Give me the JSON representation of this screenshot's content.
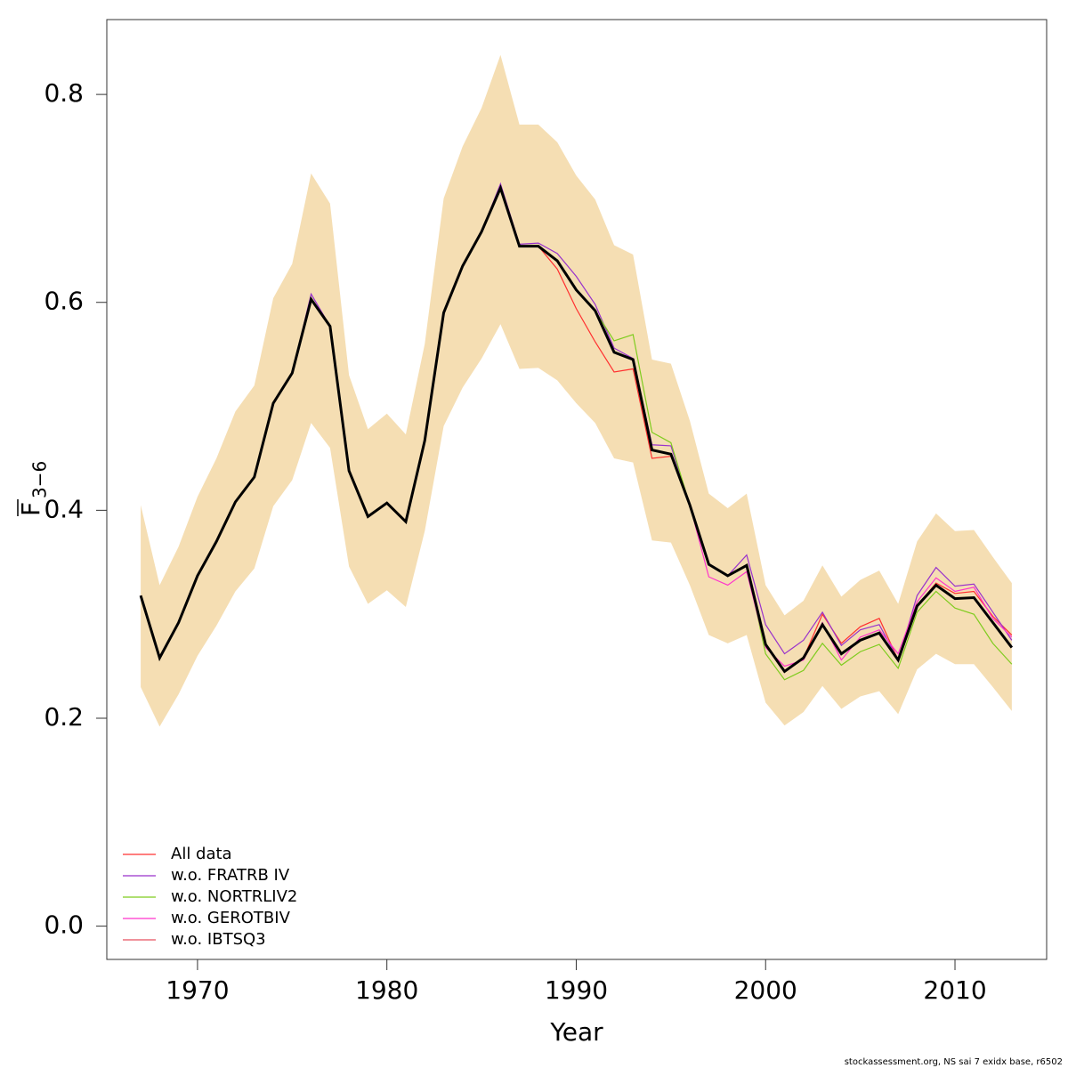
{
  "chart_data": {
    "type": "line",
    "xlabel": "Year",
    "ylabel": "F",
    "ylabel_sub": "3−6",
    "footer": "stockassessment.org, NS sai 7 exidx base, r6502",
    "x": [
      1967,
      1968,
      1969,
      1970,
      1971,
      1972,
      1973,
      1974,
      1975,
      1976,
      1977,
      1978,
      1979,
      1980,
      1981,
      1982,
      1983,
      1984,
      1985,
      1986,
      1987,
      1988,
      1989,
      1990,
      1991,
      1992,
      1993,
      1994,
      1995,
      1996,
      1997,
      1998,
      1999,
      2000,
      2001,
      2002,
      2003,
      2004,
      2005,
      2006,
      2007,
      2008,
      2009,
      2010,
      2011,
      2012,
      2013
    ],
    "band": {
      "color": "#f5deb3",
      "lower": [
        0.23,
        0.192,
        0.223,
        0.26,
        0.289,
        0.322,
        0.344,
        0.404,
        0.429,
        0.484,
        0.46,
        0.346,
        0.31,
        0.323,
        0.307,
        0.38,
        0.481,
        0.518,
        0.546,
        0.579,
        0.536,
        0.537,
        0.525,
        0.503,
        0.484,
        0.45,
        0.446,
        0.371,
        0.369,
        0.328,
        0.28,
        0.272,
        0.28,
        0.215,
        0.193,
        0.206,
        0.231,
        0.209,
        0.221,
        0.226,
        0.204,
        0.247,
        0.262,
        0.252,
        0.252,
        0.23,
        0.207
      ],
      "upper": [
        0.405,
        0.328,
        0.365,
        0.413,
        0.45,
        0.495,
        0.52,
        0.604,
        0.637,
        0.724,
        0.695,
        0.53,
        0.478,
        0.493,
        0.473,
        0.56,
        0.7,
        0.75,
        0.787,
        0.838,
        0.771,
        0.771,
        0.754,
        0.722,
        0.699,
        0.655,
        0.646,
        0.545,
        0.541,
        0.486,
        0.416,
        0.402,
        0.416,
        0.328,
        0.299,
        0.313,
        0.347,
        0.317,
        0.333,
        0.342,
        0.31,
        0.37,
        0.397,
        0.38,
        0.381,
        0.355,
        0.33
      ]
    },
    "estimate": {
      "color": "#000000",
      "values": [
        0.318,
        0.258,
        0.292,
        0.337,
        0.37,
        0.408,
        0.432,
        0.503,
        0.532,
        0.603,
        0.577,
        0.438,
        0.394,
        0.407,
        0.389,
        0.467,
        0.59,
        0.635,
        0.668,
        0.71,
        0.654,
        0.654,
        0.64,
        0.612,
        0.592,
        0.552,
        0.545,
        0.458,
        0.454,
        0.405,
        0.348,
        0.337,
        0.347,
        0.271,
        0.245,
        0.258,
        0.29,
        0.262,
        0.275,
        0.282,
        0.256,
        0.308,
        0.328,
        0.315,
        0.316,
        0.292,
        0.268
      ]
    },
    "series": [
      {
        "name": "All data",
        "color": "#ff3030",
        "values": [
          0.318,
          0.258,
          0.292,
          0.337,
          0.37,
          0.408,
          0.432,
          0.503,
          0.532,
          0.603,
          0.577,
          0.438,
          0.394,
          0.407,
          0.389,
          0.467,
          0.59,
          0.635,
          0.668,
          0.71,
          0.654,
          0.654,
          0.632,
          0.594,
          0.562,
          0.533,
          0.536,
          0.45,
          0.452,
          0.405,
          0.348,
          0.337,
          0.347,
          0.271,
          0.245,
          0.258,
          0.3,
          0.272,
          0.288,
          0.296,
          0.256,
          0.308,
          0.33,
          0.32,
          0.322,
          0.298,
          0.28
        ]
      },
      {
        "name": "w.o. FRATRB IV",
        "color": "#9932cc",
        "values": [
          0.318,
          0.258,
          0.292,
          0.337,
          0.37,
          0.408,
          0.432,
          0.503,
          0.532,
          0.608,
          0.577,
          0.438,
          0.394,
          0.407,
          0.389,
          0.467,
          0.59,
          0.635,
          0.668,
          0.714,
          0.656,
          0.657,
          0.647,
          0.625,
          0.598,
          0.556,
          0.546,
          0.463,
          0.462,
          0.405,
          0.348,
          0.337,
          0.357,
          0.29,
          0.262,
          0.275,
          0.302,
          0.27,
          0.285,
          0.29,
          0.256,
          0.318,
          0.345,
          0.327,
          0.329,
          0.302,
          0.275
        ]
      },
      {
        "name": "w.o. NORTRLIV2",
        "color": "#7fcc1f",
        "values": [
          0.318,
          0.258,
          0.292,
          0.337,
          0.37,
          0.408,
          0.432,
          0.503,
          0.532,
          0.603,
          0.577,
          0.438,
          0.394,
          0.407,
          0.389,
          0.467,
          0.59,
          0.635,
          0.668,
          0.71,
          0.654,
          0.654,
          0.64,
          0.612,
          0.592,
          0.563,
          0.569,
          0.475,
          0.465,
          0.405,
          0.348,
          0.337,
          0.347,
          0.262,
          0.237,
          0.246,
          0.272,
          0.251,
          0.264,
          0.271,
          0.248,
          0.302,
          0.322,
          0.306,
          0.3,
          0.272,
          0.252
        ]
      },
      {
        "name": "w.o. GEROTBIV",
        "color": "#ff33cc",
        "values": [
          0.318,
          0.258,
          0.292,
          0.337,
          0.37,
          0.408,
          0.432,
          0.503,
          0.532,
          0.603,
          0.577,
          0.438,
          0.394,
          0.407,
          0.389,
          0.467,
          0.59,
          0.635,
          0.668,
          0.71,
          0.654,
          0.654,
          0.64,
          0.612,
          0.592,
          0.552,
          0.545,
          0.458,
          0.454,
          0.405,
          0.336,
          0.328,
          0.341,
          0.268,
          0.25,
          0.256,
          0.292,
          0.256,
          0.278,
          0.285,
          0.262,
          0.312,
          0.335,
          0.322,
          0.326,
          0.296,
          0.278
        ]
      },
      {
        "name": "w.o. IBTSQ3",
        "color": "#e8505f",
        "values": [
          0.318,
          0.258,
          0.292,
          0.337,
          0.37,
          0.408,
          0.432,
          0.503,
          0.532,
          0.603,
          0.577,
          0.438,
          0.394,
          0.407,
          0.389,
          0.467,
          0.59,
          0.635,
          0.668,
          0.71,
          0.654,
          0.654,
          0.64,
          0.612,
          0.592,
          0.552,
          0.545,
          0.458,
          0.454,
          0.405,
          0.348,
          0.337,
          0.347,
          0.271,
          0.245,
          0.258,
          0.29,
          0.262,
          0.275,
          0.282,
          0.256,
          0.308,
          0.328,
          0.315,
          0.316,
          0.292,
          0.268
        ]
      }
    ],
    "xlim": [
      1965.21,
      2014.84
    ],
    "ylim": [
      -0.032,
      0.872
    ],
    "xticks": [
      1970,
      1980,
      1990,
      2000,
      2010
    ],
    "yticks": [
      {
        "value": 0,
        "label": "0.0"
      },
      0.2,
      0.4,
      0.6,
      0.8
    ],
    "legend": "bottom-left"
  }
}
